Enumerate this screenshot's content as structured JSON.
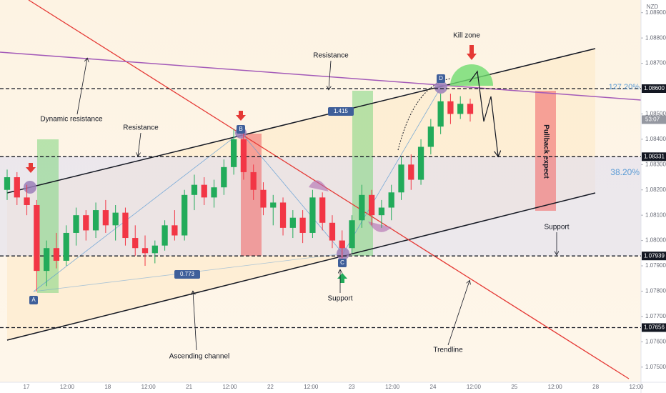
{
  "chart_data": {
    "type": "candlestick",
    "currency": "NZD",
    "ylim": [
      1.0744,
      1.0895
    ],
    "yticks": [
      {
        "value": 1.075,
        "label": "1.07500"
      },
      {
        "value": 1.076,
        "label": "1.07600"
      },
      {
        "value": 1.077,
        "label": "1.07700"
      },
      {
        "value": 1.078,
        "label": "1.07800"
      },
      {
        "value": 1.079,
        "label": "1.07900"
      },
      {
        "value": 1.08,
        "label": "1.08000"
      },
      {
        "value": 1.081,
        "label": "1.08100"
      },
      {
        "value": 1.082,
        "label": "1.08200"
      },
      {
        "value": 1.083,
        "label": "1.08300"
      },
      {
        "value": 1.084,
        "label": "1.08400"
      },
      {
        "value": 1.085,
        "label": "1.08500"
      },
      {
        "value": 1.087,
        "label": "1.08700"
      },
      {
        "value": 1.088,
        "label": "1.08800"
      },
      {
        "value": 1.089,
        "label": "1.08900"
      }
    ],
    "levels": [
      {
        "value": 1.086,
        "label": "1.08600"
      },
      {
        "value": 1.08331,
        "label": "1.08331"
      },
      {
        "value": 1.07939,
        "label": "1.07939"
      },
      {
        "value": 1.07656,
        "label": "1.07656"
      }
    ],
    "countdown": "53:07",
    "xticks": [
      "17",
      "12:00",
      "18",
      "12:00",
      "21",
      "12:00",
      "22",
      "12:00",
      "23",
      "12:00",
      "24",
      "12:00",
      "25",
      "12:00",
      "28",
      "12:00"
    ],
    "up_color": "#22ab5a",
    "down_color": "#f23645",
    "open": [
      1.082,
      1.0825,
      1.0817,
      1.0814,
      1.0788,
      1.0797,
      1.0792,
      1.0803,
      1.081,
      1.0804,
      1.0812,
      1.0806,
      1.0811,
      1.0801,
      1.0797,
      1.0795,
      1.0798,
      1.0806,
      1.0802,
      1.0818,
      1.0822,
      1.0817,
      1.0821,
      1.0829,
      1.084,
      1.0827,
      1.082,
      1.0813,
      1.0815,
      1.0805,
      1.0809,
      1.0803,
      1.0817,
      1.0807,
      1.08,
      1.0797,
      1.0808,
      1.0818,
      1.081,
      1.0813,
      1.0819,
      1.083,
      1.0824,
      1.0837,
      1.0845,
      1.0855,
      1.085,
      1.0854
    ],
    "high": [
      1.0828,
      1.0827,
      1.0822,
      1.0816,
      1.08,
      1.0803,
      1.0806,
      1.0813,
      1.0812,
      1.0815,
      1.0816,
      1.0814,
      1.0813,
      1.0806,
      1.0802,
      1.08,
      1.0808,
      1.0812,
      1.082,
      1.0826,
      1.0825,
      1.0824,
      1.0832,
      1.0844,
      1.0843,
      1.083,
      1.0823,
      1.0818,
      1.0817,
      1.0812,
      1.0812,
      1.082,
      1.0819,
      1.081,
      1.0804,
      1.081,
      1.0822,
      1.082,
      1.0816,
      1.0822,
      1.0833,
      1.0834,
      1.084,
      1.0848,
      1.0858,
      1.0858,
      1.0857,
      1.0856
    ],
    "low": [
      1.0816,
      1.0814,
      1.081,
      1.078,
      1.0782,
      1.0789,
      1.079,
      1.0798,
      1.08,
      1.0801,
      1.0803,
      1.08,
      1.0798,
      1.0794,
      1.079,
      1.0791,
      1.0796,
      1.08,
      1.08,
      1.0812,
      1.0814,
      1.0813,
      1.0818,
      1.0826,
      1.0824,
      1.0816,
      1.081,
      1.0806,
      1.0802,
      1.0801,
      1.0799,
      1.0801,
      1.0804,
      1.0797,
      1.0793,
      1.0795,
      1.0805,
      1.0806,
      1.0805,
      1.0808,
      1.0816,
      1.082,
      1.0822,
      1.0834,
      1.0842,
      1.0846,
      1.0848,
      1.0847
    ],
    "close": [
      1.0825,
      1.0817,
      1.0814,
      1.0788,
      1.0797,
      1.0792,
      1.0803,
      1.081,
      1.0804,
      1.0812,
      1.0806,
      1.0811,
      1.0801,
      1.0797,
      1.0795,
      1.0798,
      1.0806,
      1.0802,
      1.0818,
      1.0822,
      1.0817,
      1.0821,
      1.0829,
      1.084,
      1.0827,
      1.082,
      1.0813,
      1.0815,
      1.0805,
      1.0809,
      1.0803,
      1.0817,
      1.0807,
      1.08,
      1.0797,
      1.0808,
      1.0818,
      1.081,
      1.0813,
      1.0819,
      1.083,
      1.0824,
      1.0837,
      1.0845,
      1.0855,
      1.085,
      1.0854,
      1.085
    ],
    "annotations": [
      "Dynamic resistance",
      "Resistance",
      "Resistance",
      "Kill zone",
      "Support",
      "Support",
      "Ascending channel",
      "Trendline",
      "Pullback expect",
      "127.20%",
      "38.20%",
      "1.415",
      "0.773",
      "A",
      "B",
      "C",
      "D"
    ]
  }
}
